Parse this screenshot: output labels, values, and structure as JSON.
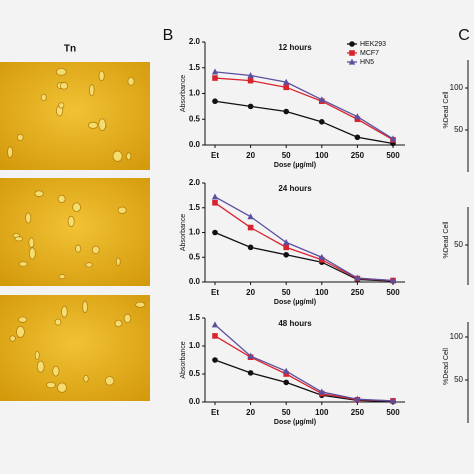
{
  "panel_a": {
    "label": "Tn"
  },
  "panel_b_label": "B",
  "chart_data": [
    {
      "type": "line",
      "title": "12 hours",
      "xlabel": "Dose (µg/ml)",
      "ylabel": "Absorbance",
      "categories": [
        "Et",
        "20",
        "50",
        "100",
        "250",
        "500"
      ],
      "ylim": [
        0,
        2
      ],
      "yticks": [
        {
          "value": 0,
          "label": "0.0"
        },
        {
          "value": 0.5,
          "label": "0.5"
        },
        {
          "value": 1,
          "label": "1.0"
        },
        {
          "value": 1.5,
          "label": "1.5"
        },
        {
          "value": 2,
          "label": "2.0"
        }
      ],
      "legend": "upper right",
      "series": [
        {
          "name": "HEK293",
          "color": "#111111",
          "marker": "circle",
          "values": [
            0.85,
            0.75,
            0.65,
            0.45,
            0.15,
            0.03
          ]
        },
        {
          "name": "MCF7",
          "color": "#d9242f",
          "marker": "square",
          "values": [
            1.3,
            1.25,
            1.12,
            0.85,
            0.5,
            0.1
          ]
        },
        {
          "name": "HN5",
          "color": "#5b4fa0",
          "marker": "triangle",
          "values": [
            1.42,
            1.35,
            1.22,
            0.88,
            0.55,
            0.12
          ]
        }
      ]
    },
    {
      "type": "line",
      "title": "24 hours",
      "xlabel": "Dose (µg/ml)",
      "ylabel": "Absorbance",
      "categories": [
        "Et",
        "20",
        "50",
        "100",
        "250",
        "500"
      ],
      "ylim": [
        0,
        2
      ],
      "yticks": [
        {
          "value": 0,
          "label": "0.0"
        },
        {
          "value": 0.5,
          "label": "0.5"
        },
        {
          "value": 1,
          "label": "1.0"
        },
        {
          "value": 1.5,
          "label": "1.5"
        },
        {
          "value": 2,
          "label": "2.0"
        }
      ],
      "series": [
        {
          "name": "HEK293",
          "color": "#111111",
          "marker": "circle",
          "values": [
            1.0,
            0.7,
            0.55,
            0.4,
            0.05,
            0.02
          ]
        },
        {
          "name": "MCF7",
          "color": "#d9242f",
          "marker": "square",
          "values": [
            1.6,
            1.1,
            0.7,
            0.45,
            0.07,
            0.03
          ]
        },
        {
          "name": "HN5",
          "color": "#5b4fa0",
          "marker": "triangle",
          "values": [
            1.72,
            1.32,
            0.8,
            0.5,
            0.08,
            0.03
          ]
        }
      ]
    },
    {
      "type": "line",
      "title": "48 hours",
      "xlabel": "Dose (µg/ml)",
      "ylabel": "Absorbance",
      "categories": [
        "Et",
        "20",
        "50",
        "100",
        "250",
        "500"
      ],
      "ylim": [
        0,
        1.5
      ],
      "yticks": [
        {
          "value": 0,
          "label": "0.0"
        },
        {
          "value": 0.5,
          "label": "0.5"
        },
        {
          "value": 1,
          "label": "1.0"
        },
        {
          "value": 1.5,
          "label": "1.5"
        }
      ],
      "series": [
        {
          "name": "HEK293",
          "color": "#111111",
          "marker": "circle",
          "values": [
            0.75,
            0.52,
            0.35,
            0.12,
            0.03,
            0.01
          ]
        },
        {
          "name": "MCF7",
          "color": "#d9242f",
          "marker": "square",
          "values": [
            1.18,
            0.8,
            0.5,
            0.15,
            0.04,
            0.02
          ]
        },
        {
          "name": "HN5",
          "color": "#5b4fa0",
          "marker": "triangle",
          "values": [
            1.38,
            0.82,
            0.55,
            0.18,
            0.05,
            0.02
          ]
        }
      ]
    }
  ],
  "panel_c": {
    "label": "C",
    "charts": [
      {
        "ylabel": "%Dead Cell",
        "yticks": [
          100,
          50
        ]
      },
      {
        "ylabel": "%Dead Cell",
        "yticks": [
          50
        ]
      },
      {
        "ylabel": "%Dead Cell",
        "yticks": [
          100,
          50
        ]
      }
    ]
  }
}
